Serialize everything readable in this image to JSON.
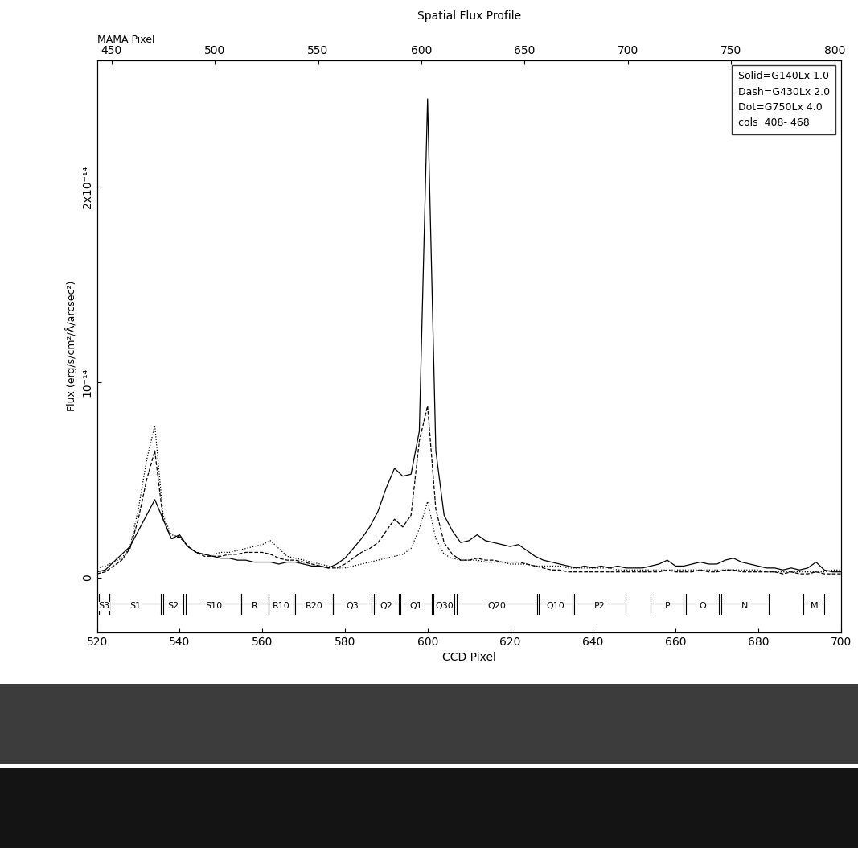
{
  "chart_data": {
    "type": "line",
    "title": "Spatial Flux Profile",
    "x_label": "CCD Pixel",
    "y_label": "Flux (erg/s/cm²/Å/arcsec²)",
    "xlim": [
      520,
      700
    ],
    "xticks": [
      520,
      540,
      560,
      580,
      600,
      620,
      640,
      660,
      680,
      700
    ],
    "ylim": [
      -2.8e-15,
      2.65e-14
    ],
    "yticks": [
      {
        "value": 0,
        "label": "0"
      },
      {
        "value": 1e-14,
        "label": "10⁻¹⁴"
      },
      {
        "value": 2e-14,
        "label": "2x10⁻¹⁴"
      }
    ],
    "top_axis": {
      "label": "MAMA Pixel",
      "xlim": [
        443,
        803
      ],
      "xticks": [
        450,
        500,
        550,
        600,
        650,
        700,
        750,
        800
      ]
    },
    "legend": "upper right",
    "legend_note": "cols  408- 468",
    "x": [
      520,
      522,
      524,
      526,
      528,
      530,
      532,
      534,
      536,
      538,
      540,
      542,
      544,
      546,
      548,
      550,
      552,
      554,
      556,
      558,
      560,
      562,
      564,
      566,
      568,
      570,
      572,
      574,
      576,
      578,
      580,
      582,
      584,
      586,
      588,
      590,
      592,
      594,
      596,
      598,
      600,
      602,
      604,
      606,
      608,
      610,
      612,
      614,
      616,
      618,
      620,
      622,
      624,
      626,
      628,
      630,
      632,
      634,
      636,
      638,
      640,
      642,
      644,
      646,
      648,
      650,
      652,
      654,
      656,
      658,
      660,
      662,
      664,
      666,
      668,
      670,
      672,
      674,
      676,
      678,
      680,
      682,
      684,
      686,
      688,
      690,
      692,
      694,
      696,
      698,
      700
    ],
    "series": [
      {
        "name": "Solid=G140Lx 1.0",
        "color": "#000000",
        "line_style": "solid",
        "values": [
          3e-16,
          4e-16,
          8e-16,
          1.2e-15,
          1.6e-15,
          2.4e-15,
          3.2e-15,
          4e-15,
          3e-15,
          2e-15,
          2.2e-15,
          1.6e-15,
          1.3e-15,
          1.2e-15,
          1.1e-15,
          1e-15,
          1e-15,
          9e-16,
          9e-16,
          8e-16,
          8e-16,
          8e-16,
          7e-16,
          8e-16,
          8e-16,
          7e-16,
          6e-16,
          6e-16,
          5e-16,
          7e-16,
          1e-15,
          1.5e-15,
          2e-15,
          2.6e-15,
          3.4e-15,
          4.6e-15,
          5.6e-15,
          5.2e-15,
          5.3e-15,
          7.5e-15,
          2.45e-14,
          6.5e-15,
          3.2e-15,
          2.4e-15,
          1.8e-15,
          1.9e-15,
          2.2e-15,
          1.9e-15,
          1.8e-15,
          1.7e-15,
          1.6e-15,
          1.7e-15,
          1.4e-15,
          1.1e-15,
          9e-16,
          8e-16,
          7e-16,
          6e-16,
          5e-16,
          6e-16,
          5e-16,
          6e-16,
          5e-16,
          6e-16,
          5e-16,
          5e-16,
          5e-16,
          6e-16,
          7e-16,
          9e-16,
          6e-16,
          6e-16,
          7e-16,
          8e-16,
          7e-16,
          7e-16,
          9e-16,
          1e-15,
          8e-16,
          7e-16,
          6e-16,
          5e-16,
          5e-16,
          4e-16,
          5e-16,
          4e-16,
          5e-16,
          8e-16,
          4e-16,
          3e-16,
          3e-16
        ]
      },
      {
        "name": "Dash=G430Lx 2.0",
        "color": "#000000",
        "line_style": "dashed",
        "values": [
          2e-16,
          3e-16,
          6e-16,
          9e-16,
          1.5e-15,
          3e-15,
          5e-15,
          6.5e-15,
          3e-15,
          2e-15,
          2.1e-15,
          1.6e-15,
          1.3e-15,
          1.1e-15,
          1.1e-15,
          1.1e-15,
          1.2e-15,
          1.2e-15,
          1.3e-15,
          1.3e-15,
          1.3e-15,
          1.2e-15,
          1e-15,
          9e-16,
          9e-16,
          8e-16,
          7e-16,
          6e-16,
          5e-16,
          5e-16,
          7e-16,
          1e-15,
          1.3e-15,
          1.5e-15,
          1.8e-15,
          2.4e-15,
          3e-15,
          2.6e-15,
          3.2e-15,
          7e-15,
          8.8e-15,
          3.5e-15,
          1.8e-15,
          1.2e-15,
          9e-16,
          9e-16,
          1e-15,
          9e-16,
          9e-16,
          8e-16,
          8e-16,
          8e-16,
          7e-16,
          6e-16,
          5e-16,
          4e-16,
          4e-16,
          3e-16,
          3e-16,
          3e-16,
          3e-16,
          3e-16,
          3e-16,
          3e-16,
          3e-16,
          3e-16,
          3e-16,
          3e-16,
          3e-16,
          4e-16,
          3e-16,
          3e-16,
          3e-16,
          4e-16,
          3e-16,
          3e-16,
          4e-16,
          4e-16,
          3e-16,
          3e-16,
          3e-16,
          3e-16,
          3e-16,
          2e-16,
          3e-16,
          2e-16,
          2e-16,
          3e-16,
          2e-16,
          2e-16,
          2e-16
        ]
      },
      {
        "name": "Dot=G750Lx 4.0",
        "color": "#000000",
        "line_style": "dotted",
        "values": [
          5e-16,
          6e-16,
          8e-16,
          1e-15,
          1.6e-15,
          3.5e-15,
          6e-15,
          7.8e-15,
          3.2e-15,
          2.2e-15,
          2.1e-15,
          1.6e-15,
          1.3e-15,
          1.2e-15,
          1.2e-15,
          1.3e-15,
          1.3e-15,
          1.4e-15,
          1.5e-15,
          1.6e-15,
          1.7e-15,
          1.9e-15,
          1.5e-15,
          1.1e-15,
          1e-15,
          9e-16,
          8e-16,
          7e-16,
          6e-16,
          5e-16,
          5e-16,
          6e-16,
          7e-16,
          8e-16,
          9e-16,
          1e-15,
          1.1e-15,
          1.2e-15,
          1.5e-15,
          2.5e-15,
          3.9e-15,
          2e-15,
          1.2e-15,
          1e-15,
          9e-16,
          9e-16,
          9e-16,
          8e-16,
          8e-16,
          8e-16,
          7e-16,
          7e-16,
          7e-16,
          6e-16,
          6e-16,
          6e-16,
          6e-16,
          5e-16,
          5e-16,
          5e-16,
          5e-16,
          5e-16,
          5e-16,
          4e-16,
          4e-16,
          4e-16,
          4e-16,
          4e-16,
          4e-16,
          4e-16,
          4e-16,
          4e-16,
          4e-16,
          4e-16,
          4e-16,
          4e-16,
          4e-16,
          4e-16,
          4e-16,
          4e-16,
          4e-16,
          3e-16,
          3e-16,
          3e-16,
          3e-16,
          3e-16,
          3e-16,
          3e-16,
          3e-16,
          4e-16,
          4e-16
        ]
      }
    ],
    "regions": [
      {
        "label": "S3",
        "start": 520.5,
        "end": 523
      },
      {
        "label": "S1",
        "start": 523,
        "end": 535.5
      },
      {
        "label": "S2",
        "start": 536,
        "end": 541
      },
      {
        "label": "S10",
        "start": 541.5,
        "end": 555
      },
      {
        "label": "R",
        "start": 555,
        "end": 561.5
      },
      {
        "label": "R10",
        "start": 561.5,
        "end": 567.5
      },
      {
        "label": "R20",
        "start": 568,
        "end": 577
      },
      {
        "label": "Q3",
        "start": 577,
        "end": 586.5
      },
      {
        "label": "Q2",
        "start": 587,
        "end": 593
      },
      {
        "label": "Q1",
        "start": 593.5,
        "end": 601
      },
      {
        "label": "Q30",
        "start": 601.5,
        "end": 606.5
      },
      {
        "label": "Q20",
        "start": 607,
        "end": 626.5
      },
      {
        "label": "Q10",
        "start": 627,
        "end": 635
      },
      {
        "label": "P2",
        "start": 635.5,
        "end": 648
      },
      {
        "label": "P",
        "start": 654,
        "end": 662
      },
      {
        "label": "O",
        "start": 662.5,
        "end": 670.5
      },
      {
        "label": "N",
        "start": 671,
        "end": 682.5
      },
      {
        "label": "M",
        "start": 691,
        "end": 696
      }
    ]
  }
}
